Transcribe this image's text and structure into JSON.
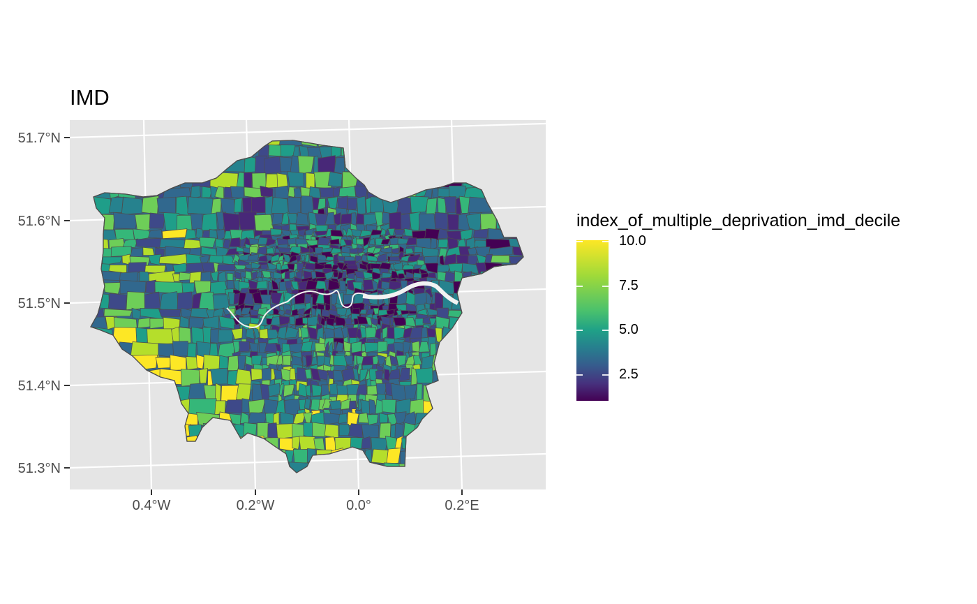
{
  "title": "IMD",
  "legend": {
    "title": "index_of_multiple_deprivation_imd_decile",
    "ticks": [
      {
        "value": 10.0,
        "label": "10.0"
      },
      {
        "value": 7.5,
        "label": "7.5"
      },
      {
        "value": 5.0,
        "label": "5.0"
      },
      {
        "value": 2.5,
        "label": "2.5"
      }
    ],
    "range": [
      1,
      10
    ],
    "palette": "viridis"
  },
  "axes": {
    "y_labels": [
      "51.7°N",
      "51.6°N",
      "51.5°N",
      "51.4°N",
      "51.3°N"
    ],
    "x_labels": [
      "0.4°W",
      "0.2°W",
      "0.0°",
      "0.2°E"
    ]
  },
  "colors": {
    "panel_background": "#e5e5e5",
    "grid": "#ffffff",
    "boundary": "#4d4d4d",
    "river": "#f2f2f2"
  },
  "map": {
    "region": "Greater London",
    "feature": "River Thames"
  }
}
